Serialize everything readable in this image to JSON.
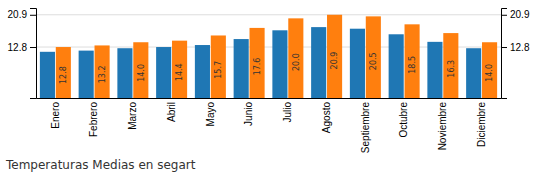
{
  "chart_data": {
    "type": "bar",
    "title": "Temperaturas Medias en segart",
    "categories": [
      "Enero",
      "Febrero",
      "Marzo",
      "Abril",
      "Mayo",
      "Junio",
      "Julio",
      "Agosto",
      "Septiembre",
      "Octubre",
      "Noviembre",
      "Diciembre"
    ],
    "series": [
      {
        "values": [
          11.6,
          11.9,
          12.5,
          12.8,
          13.3,
          14.8,
          17.0,
          17.8,
          17.4,
          16.0,
          14.1,
          12.5
        ]
      },
      {
        "values": [
          12.8,
          13.2,
          14.0,
          14.4,
          15.7,
          17.6,
          20.0,
          20.9,
          20.5,
          18.5,
          16.3,
          14.0
        ],
        "data_labels": true,
        "value_labels": [
          "12.8",
          "13.2",
          "14.0",
          "14.4",
          "15.7",
          "17.6",
          "20.0",
          "20.9",
          "20.5",
          "18.5",
          "16.3",
          "14.0"
        ]
      }
    ],
    "ylim": [
      0,
      22.6
    ],
    "yticks": [
      12.8,
      20.9
    ],
    "y2lim": [
      0,
      22.6
    ],
    "y2ticks": [
      12.8,
      20.9
    ],
    "grid": true
  }
}
